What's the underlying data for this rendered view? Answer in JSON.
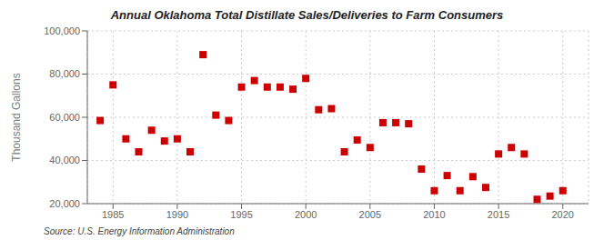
{
  "chart_data": {
    "type": "scatter",
    "title": "Annual Oklahoma Total Distillate Sales/Deliveries to Farm Consumers",
    "ylabel": "Thousand Gallons",
    "annotations": [
      "Source: U.S. Energy Information Administration"
    ],
    "x": [
      1984,
      1985,
      1986,
      1987,
      1988,
      1989,
      1990,
      1991,
      1992,
      1993,
      1994,
      1995,
      1996,
      1997,
      1998,
      1999,
      2000,
      2001,
      2002,
      2003,
      2004,
      2005,
      2006,
      2007,
      2008,
      2009,
      2010,
      2011,
      2012,
      2013,
      2014,
      2015,
      2016,
      2017,
      2018,
      2019,
      2020
    ],
    "values": [
      58500,
      75000,
      50000,
      44000,
      54000,
      49000,
      50000,
      44000,
      89000,
      61000,
      58500,
      74000,
      77000,
      74000,
      74000,
      73000,
      78000,
      63500,
      64000,
      44000,
      49500,
      46000,
      57500,
      57500,
      57000,
      36000,
      26000,
      33000,
      26000,
      32500,
      27500,
      43000,
      46000,
      43000,
      22000,
      23500,
      26000
    ],
    "color": "#cc0000",
    "marker": "square",
    "xlim": [
      1983,
      2022
    ],
    "xticks": [
      1985,
      1990,
      1995,
      2000,
      2005,
      2010,
      2015,
      2020
    ],
    "ylim": [
      20000,
      100000
    ],
    "yticks": [
      {
        "value": 20000,
        "label": "20,000"
      },
      {
        "value": 40000,
        "label": "40,000"
      },
      {
        "value": 60000,
        "label": "60,000"
      },
      {
        "value": 80000,
        "label": "80,000"
      },
      {
        "value": 100000,
        "label": "100,000"
      }
    ],
    "grid": true
  }
}
